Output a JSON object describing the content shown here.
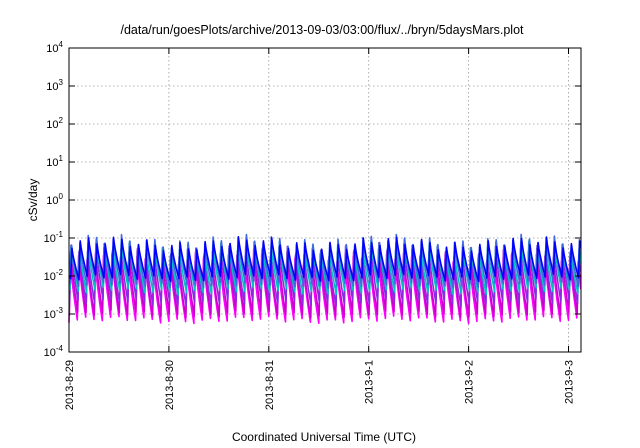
{
  "chart_data": {
    "type": "line",
    "title": "/data/run/goesPlots/archive/2013-09-03/03:00/flux/../bryn/5daysMars.plot",
    "xlabel": "Coordinated Universal Time (UTC)",
    "ylabel": "cSv/day",
    "y_scale": "log",
    "ylim": [
      0.0001,
      10000
    ],
    "y_ticks": [
      {
        "base": "10",
        "exp": "-4",
        "value": 0.0001
      },
      {
        "base": "10",
        "exp": "-3",
        "value": 0.001
      },
      {
        "base": "10",
        "exp": "-2",
        "value": 0.01
      },
      {
        "base": "10",
        "exp": "-1",
        "value": 0.1
      },
      {
        "base": "10",
        "exp": "0",
        "value": 1
      },
      {
        "base": "10",
        "exp": "1",
        "value": 10
      },
      {
        "base": "10",
        "exp": "2",
        "value": 100
      },
      {
        "base": "10",
        "exp": "3",
        "value": 1000
      },
      {
        "base": "10",
        "exp": "4",
        "value": 10000
      }
    ],
    "xlim": [
      "2013-08-29T00:00",
      "2013-09-03T03:00"
    ],
    "x_ticks": [
      "2013-8-29",
      "2013-8-30",
      "2013-8-31",
      "2013-9-1",
      "2013-9-2",
      "2013-9-3"
    ],
    "grid": true,
    "legend": "none",
    "series_pattern": {
      "period_hours": 2,
      "description": "periodic sawtooth: sharp rise followed by gradual decay, repeating through the whole range",
      "series": [
        {
          "color": "#ff00ff",
          "peak": 0.025,
          "trough": 0.0007
        },
        {
          "color": "#cc00cc",
          "peak": 0.035,
          "trough": 0.001
        },
        {
          "color": "#8a2be2",
          "peak": 0.05,
          "trough": 0.002
        },
        {
          "color": "#00c0c0",
          "peak": 0.06,
          "trough": 0.004
        },
        {
          "color": "#4169e1",
          "peak": 0.08,
          "trough": 0.006
        },
        {
          "color": "#0000ff",
          "peak": 0.07,
          "trough": 0.009
        }
      ]
    }
  }
}
